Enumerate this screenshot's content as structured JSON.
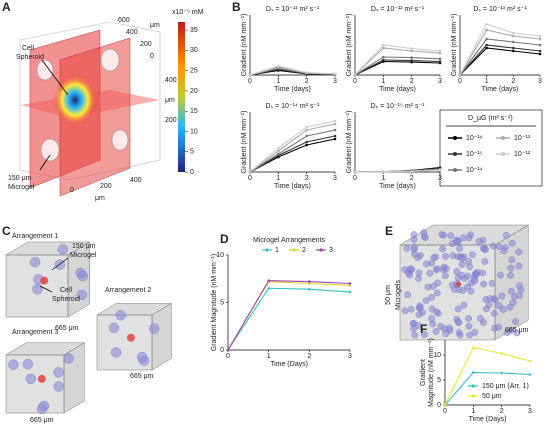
{
  "panel_labels": [
    "A",
    "B",
    "C",
    "D",
    "E",
    "F"
  ],
  "panel_a": {
    "spheroid": [
      "Cell",
      "Spheroid"
    ],
    "microgel": [
      "150 μm",
      "Microgel"
    ],
    "unit": "μm",
    "top_ticks": [
      600,
      400,
      200,
      0
    ],
    "right_ticks": [
      400,
      200
    ],
    "bottom_ticks": [
      0,
      200,
      400
    ],
    "colorbar": {
      "unit": "x10⁻⁵ mM",
      "ticks": [
        0,
        5,
        10,
        15,
        20,
        25,
        30,
        35
      ],
      "lim": [
        0,
        37
      ]
    }
  },
  "panel_c": {
    "arrangements": [
      "Arrangement 1",
      "Arrangement 2",
      "Arrangement 3"
    ],
    "microgel": [
      "150 μm",
      "Microgel"
    ],
    "spheroid": [
      "Cell",
      "Spheroid"
    ],
    "size": "665 μm"
  },
  "panel_e": {
    "title": [
      "50 μm",
      "Microgels"
    ],
    "size": "665 μm"
  },
  "chart_data": [
    {
      "type": "line",
      "title": "Dₛ = 10⁻¹¹ m² s⁻¹",
      "x": [
        0,
        1,
        2,
        3
      ],
      "xlim": [
        0,
        3
      ],
      "xticks": [
        0,
        1,
        2,
        3
      ],
      "ylim": [
        0,
        20
      ],
      "xlabel": "Time (days)",
      "ylabel": "Gradient  (nM mm⁻¹)",
      "legend_title": "D_µG (m² s⁻¹)",
      "series": [
        {
          "name": "10⁻¹⁶",
          "color": "#000000",
          "values": [
            0,
            1.5,
            0.4,
            0.2
          ]
        },
        {
          "name": "10⁻¹⁵",
          "color": "#333333",
          "values": [
            0,
            1.8,
            0.5,
            0.2
          ]
        },
        {
          "name": "10⁻¹⁴",
          "color": "#777777",
          "values": [
            0,
            2.2,
            0.6,
            0.3
          ]
        },
        {
          "name": "10⁻¹³",
          "color": "#aaaaaa",
          "values": [
            0,
            2.6,
            0.7,
            0.3
          ]
        },
        {
          "name": "10⁻¹²",
          "color": "#cccccc",
          "values": [
            0,
            3,
            0.8,
            0.4
          ]
        }
      ]
    },
    {
      "type": "line",
      "title": "Dₛ = 10⁻¹² m² s⁻¹",
      "x": [
        0,
        1,
        2,
        3
      ],
      "xlim": [
        0,
        3
      ],
      "xticks": [
        0,
        1,
        2,
        3
      ],
      "ylim": [
        0,
        20
      ],
      "xlabel": "Time (days)",
      "ylabel": "Gradient  (nM mm⁻¹)",
      "series": [
        {
          "color": "#000000",
          "values": [
            0,
            4.5,
            4.3,
            4
          ]
        },
        {
          "color": "#333333",
          "values": [
            0,
            5,
            4.8,
            4.5
          ]
        },
        {
          "color": "#777777",
          "values": [
            0,
            6,
            5.8,
            5.4
          ]
        },
        {
          "color": "#aaaaaa",
          "values": [
            0,
            9,
            8,
            7.3
          ]
        },
        {
          "color": "#cccccc",
          "values": [
            0,
            10,
            8.8,
            8
          ]
        }
      ]
    },
    {
      "type": "line",
      "title": "Dₛ = 10⁻¹³ m² s⁻¹",
      "x": [
        0,
        1,
        2,
        3
      ],
      "xlim": [
        0,
        3
      ],
      "xticks": [
        0,
        1,
        2,
        3
      ],
      "ylim": [
        0,
        20
      ],
      "xlabel": "Time (days)",
      "ylabel": "Gradient  (nM mm⁻¹)",
      "series": [
        {
          "color": "#000000",
          "values": [
            0,
            9,
            8,
            7
          ]
        },
        {
          "color": "#333333",
          "values": [
            0,
            10,
            9,
            8
          ]
        },
        {
          "color": "#777777",
          "values": [
            0,
            12,
            11,
            10
          ]
        },
        {
          "color": "#aaaaaa",
          "values": [
            0,
            15,
            13,
            12
          ]
        },
        {
          "color": "#cccccc",
          "values": [
            0,
            17,
            14,
            13
          ]
        }
      ]
    },
    {
      "type": "line",
      "title": "Dₛ = 10⁻¹⁴ m² s⁻¹",
      "x": [
        0,
        1,
        2,
        3
      ],
      "xlim": [
        0,
        3
      ],
      "xticks": [
        0,
        1,
        2,
        3
      ],
      "ylim": [
        0,
        20
      ],
      "xlabel": "Time (days)",
      "ylabel": "Gradient  (nM mm⁻¹)",
      "series": [
        {
          "color": "#000000",
          "values": [
            0,
            5,
            9,
            11
          ]
        },
        {
          "color": "#333333",
          "values": [
            0,
            5.5,
            10,
            12
          ]
        },
        {
          "color": "#777777",
          "values": [
            0,
            6,
            12,
            14
          ]
        },
        {
          "color": "#aaaaaa",
          "values": [
            0,
            7,
            14,
            16
          ]
        },
        {
          "color": "#cccccc",
          "values": [
            0,
            8,
            15,
            17
          ]
        }
      ]
    },
    {
      "type": "line",
      "title": "Dₛ = 10⁻¹⁵ m² s⁻¹",
      "x": [
        0,
        1,
        2,
        3
      ],
      "xlim": [
        0,
        3
      ],
      "xticks": [
        0,
        1,
        2,
        3
      ],
      "ylim": [
        0,
        20
      ],
      "xlabel": "Time (days)",
      "ylabel": "Gradient  (nM mm⁻¹)",
      "series": [
        {
          "color": "#000000",
          "values": [
            0,
            0.1,
            0.5,
            1.5
          ]
        },
        {
          "color": "#333333",
          "values": [
            0,
            0.1,
            0.4,
            1.2
          ]
        },
        {
          "color": "#777777",
          "values": [
            0,
            0.1,
            0.3,
            1
          ]
        },
        {
          "color": "#aaaaaa",
          "values": [
            0,
            0.1,
            0.3,
            0.8
          ]
        },
        {
          "color": "#cccccc",
          "values": [
            0,
            0.1,
            0.2,
            0.6
          ]
        }
      ]
    },
    {
      "type": "line",
      "legend_title": "Microgel Arrangements",
      "x": [
        0,
        1,
        2,
        3
      ],
      "xlim": [
        0,
        3
      ],
      "xticks": [
        0,
        1,
        2,
        3
      ],
      "ylim": [
        0,
        10
      ],
      "yticks": [
        0,
        5,
        10
      ],
      "xlabel": "Time (Days)",
      "ylabel": "Gradient Magnitude (nM mm⁻¹)",
      "series": [
        {
          "name": "1",
          "color": "#33c0c8",
          "values": [
            0,
            6.5,
            6.4,
            6.1
          ]
        },
        {
          "name": "2",
          "color": "#d8d830",
          "values": [
            0,
            7.2,
            7.0,
            6.8
          ]
        },
        {
          "name": "3",
          "color": "#a040a8",
          "values": [
            0,
            7.3,
            7.2,
            7.0
          ]
        }
      ]
    },
    {
      "type": "line",
      "x": [
        0,
        1,
        2,
        3
      ],
      "xlim": [
        0,
        3
      ],
      "xticks": [
        0,
        1,
        2,
        3
      ],
      "ylim": [
        0,
        13
      ],
      "yticks": [
        0,
        5,
        10
      ],
      "xlabel": "Time (Days)",
      "ylabel": [
        "Gradient",
        "Magnitude (nM mm⁻¹)"
      ],
      "series": [
        {
          "name": "150 μm (Arr. 1)",
          "color": "#33c0c8",
          "values": [
            0,
            6.5,
            6.4,
            6.1
          ]
        },
        {
          "name": "50 μm",
          "color": "#e8e830",
          "values": [
            0,
            11.5,
            10.3,
            8.8
          ]
        }
      ]
    }
  ]
}
